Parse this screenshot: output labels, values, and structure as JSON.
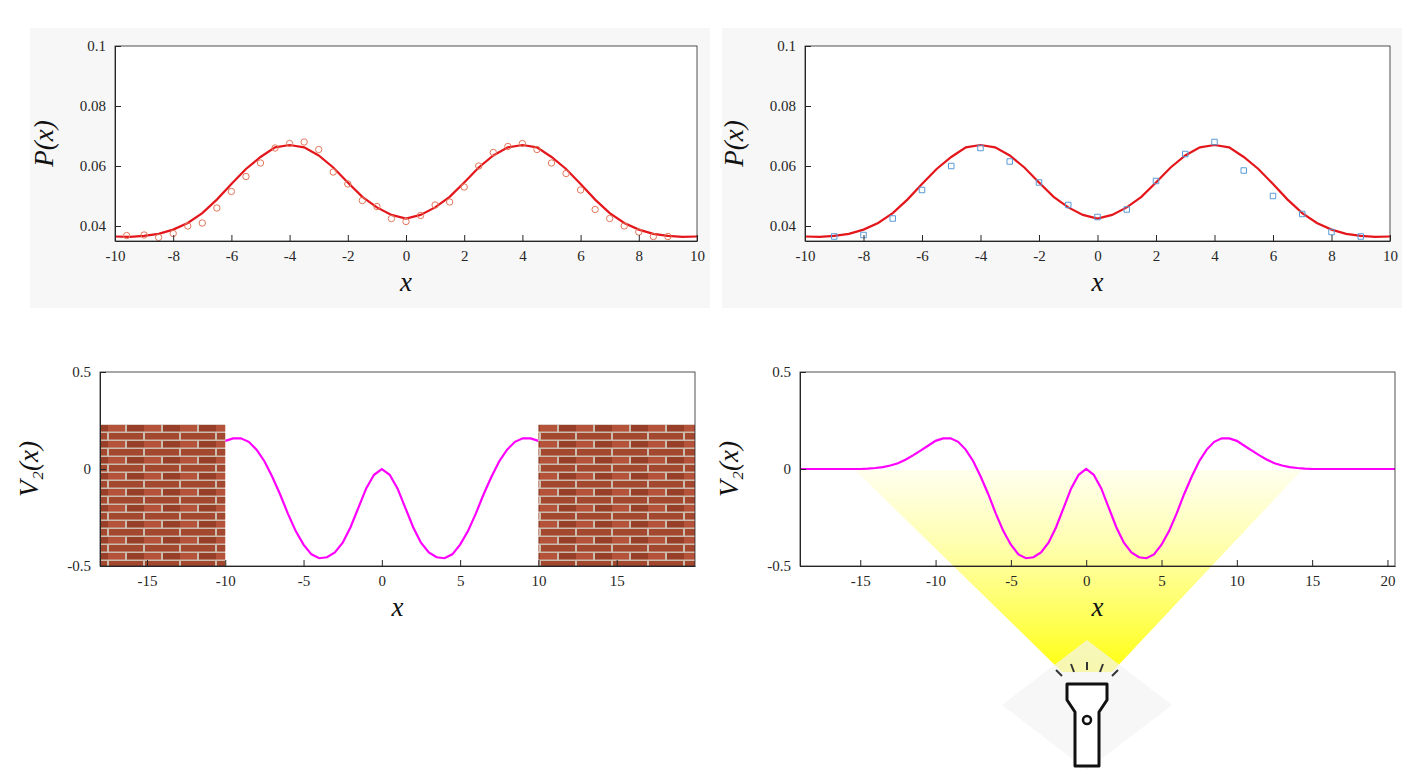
{
  "chart_data": [
    {
      "type": "line",
      "xlabel": "x",
      "ylabel": "P(x)",
      "xlim": [
        -10,
        10
      ],
      "ylim": [
        0.035,
        0.1
      ],
      "xticks": [
        -10,
        -8,
        -6,
        -4,
        -2,
        0,
        2,
        4,
        6,
        8,
        10
      ],
      "yticks": [
        0.04,
        0.06,
        0.08,
        0.1
      ],
      "series": [
        {
          "type": "line",
          "color": "#e3161c",
          "line_style": "solid",
          "x": [
            -10,
            -9.5,
            -9,
            -8.5,
            -8,
            -7.5,
            -7,
            -6.5,
            -6,
            -5.5,
            -5,
            -4.5,
            -4,
            -3.5,
            -3,
            -2.5,
            -2,
            -1.5,
            -1,
            -0.5,
            0,
            0.5,
            1,
            1.5,
            2,
            2.5,
            3,
            3.5,
            4,
            4.5,
            5,
            5.5,
            6,
            6.5,
            7,
            7.5,
            8,
            8.5,
            9,
            9.5,
            10
          ],
          "values": [
            0.0365,
            0.0364,
            0.0367,
            0.0374,
            0.0388,
            0.041,
            0.0443,
            0.0488,
            0.054,
            0.059,
            0.063,
            0.0662,
            0.067,
            0.0662,
            0.0635,
            0.0595,
            0.0545,
            0.0497,
            0.0462,
            0.0437,
            0.0425,
            0.0437,
            0.0462,
            0.0497,
            0.0545,
            0.0595,
            0.0635,
            0.0662,
            0.067,
            0.0662,
            0.063,
            0.059,
            0.054,
            0.0488,
            0.0443,
            0.041,
            0.0388,
            0.0374,
            0.0367,
            0.0364,
            0.0365
          ]
        },
        {
          "type": "scatter",
          "color": "#e2775a",
          "marker": "circle",
          "x": [
            -9.6,
            -9,
            -8.5,
            -8,
            -7.5,
            -7,
            -6.5,
            -6,
            -5.5,
            -5,
            -4.5,
            -4,
            -3.5,
            -3,
            -2.5,
            -2,
            -1.5,
            -1,
            -0.5,
            0,
            0.5,
            1,
            1.5,
            2,
            2.5,
            3,
            3.5,
            4,
            4.5,
            5,
            5.5,
            6,
            6.5,
            7,
            7.5,
            8,
            8.5,
            9
          ],
          "values": [
            0.0368,
            0.037,
            0.0362,
            0.0375,
            0.04,
            0.041,
            0.046,
            0.0515,
            0.0565,
            0.061,
            0.066,
            0.0675,
            0.068,
            0.0655,
            0.058,
            0.054,
            0.0485,
            0.0465,
            0.0425,
            0.0415,
            0.0435,
            0.047,
            0.048,
            0.053,
            0.06,
            0.0645,
            0.0665,
            0.0675,
            0.0655,
            0.061,
            0.0575,
            0.052,
            0.0455,
            0.0425,
            0.04,
            0.038,
            0.0365,
            0.0365
          ]
        }
      ]
    },
    {
      "type": "line",
      "xlabel": "x",
      "ylabel": "P(x)",
      "xlim": [
        -10,
        10
      ],
      "ylim": [
        0.035,
        0.1
      ],
      "xticks": [
        -10,
        -8,
        -6,
        -4,
        -2,
        0,
        2,
        4,
        6,
        8,
        10
      ],
      "yticks": [
        0.04,
        0.06,
        0.08,
        0.1
      ],
      "series": [
        {
          "type": "line",
          "color": "#e3161c",
          "line_style": "solid",
          "x": [
            -10,
            -9.5,
            -9,
            -8.5,
            -8,
            -7.5,
            -7,
            -6.5,
            -6,
            -5.5,
            -5,
            -4.5,
            -4,
            -3.5,
            -3,
            -2.5,
            -2,
            -1.5,
            -1,
            -0.5,
            0,
            0.5,
            1,
            1.5,
            2,
            2.5,
            3,
            3.5,
            4,
            4.5,
            5,
            5.5,
            6,
            6.5,
            7,
            7.5,
            8,
            8.5,
            9,
            9.5,
            10
          ],
          "values": [
            0.0365,
            0.0364,
            0.0367,
            0.0374,
            0.0388,
            0.041,
            0.0443,
            0.0488,
            0.054,
            0.059,
            0.063,
            0.0662,
            0.067,
            0.0662,
            0.0635,
            0.0595,
            0.0545,
            0.0497,
            0.0462,
            0.0437,
            0.0425,
            0.0437,
            0.0462,
            0.0497,
            0.0545,
            0.0595,
            0.0635,
            0.0662,
            0.067,
            0.0662,
            0.063,
            0.059,
            0.054,
            0.0488,
            0.0443,
            0.041,
            0.0388,
            0.0374,
            0.0367,
            0.0364,
            0.0365
          ]
        },
        {
          "type": "scatter",
          "color": "#5b9bd5",
          "marker": "square",
          "x": [
            -9,
            -8,
            -7,
            -6,
            -5,
            -4,
            -3,
            -2,
            -1,
            0,
            1,
            2,
            3,
            4,
            5,
            6,
            7,
            8,
            9
          ],
          "values": [
            0.0365,
            0.037,
            0.0425,
            0.052,
            0.06,
            0.066,
            0.0615,
            0.0545,
            0.047,
            0.043,
            0.0455,
            0.055,
            0.064,
            0.068,
            0.0585,
            0.05,
            0.044,
            0.038,
            0.0365
          ]
        }
      ]
    },
    {
      "type": "line",
      "xlabel": "x",
      "ylabel": "V₂(x)",
      "xlim": [
        -18,
        20
      ],
      "ylim": [
        -0.5,
        0.5
      ],
      "xticks": [
        -15,
        -10,
        -5,
        0,
        5,
        10,
        15
      ],
      "yticks": [
        -0.5,
        0,
        0.5
      ],
      "series": [
        {
          "type": "line",
          "color": "#ff00ff",
          "line_style": "solid",
          "x": [
            -10,
            -9.5,
            -9,
            -8.5,
            -8,
            -7.5,
            -7,
            -6.5,
            -6,
            -5.5,
            -5,
            -4.5,
            -4,
            -3.5,
            -3,
            -2.5,
            -2,
            -1.5,
            -1,
            -0.5,
            0,
            0.5,
            1,
            1.5,
            2,
            2.5,
            3,
            3.5,
            4,
            4.5,
            5,
            5.5,
            6,
            6.5,
            7,
            7.5,
            8,
            8.5,
            9,
            9.5,
            10
          ],
          "values": [
            0.145,
            0.158,
            0.158,
            0.14,
            0.1,
            0.04,
            -0.04,
            -0.13,
            -0.23,
            -0.32,
            -0.39,
            -0.44,
            -0.46,
            -0.455,
            -0.43,
            -0.38,
            -0.3,
            -0.2,
            -0.1,
            -0.03,
            0,
            -0.03,
            -0.1,
            -0.2,
            -0.3,
            -0.38,
            -0.43,
            -0.455,
            -0.46,
            -0.44,
            -0.39,
            -0.32,
            -0.23,
            -0.13,
            -0.04,
            0.04,
            0.1,
            0.14,
            0.158,
            0.158,
            0.145
          ]
        }
      ]
    },
    {
      "type": "line",
      "xlabel": "x",
      "ylabel": "V₂(x)",
      "xlim": [
        -19,
        20.5
      ],
      "ylim": [
        -0.5,
        0.5
      ],
      "xticks": [
        -15,
        -10,
        -5,
        0,
        5,
        10,
        15,
        20
      ],
      "yticks": [
        -0.5,
        0,
        0.5
      ],
      "series": [
        {
          "type": "line",
          "color": "#ff00ff",
          "line_style": "solid",
          "x": [
            -19,
            -18,
            -17,
            -16,
            -15,
            -14.5,
            -14,
            -13.5,
            -13,
            -12.5,
            -12,
            -11.5,
            -11,
            -10.5,
            -10,
            -9.5,
            -9,
            -8.5,
            -8,
            -7.5,
            -7,
            -6.5,
            -6,
            -5.5,
            -5,
            -4.5,
            -4,
            -3.5,
            -3,
            -2.5,
            -2,
            -1.5,
            -1,
            -0.5,
            0,
            0.5,
            1,
            1.5,
            2,
            2.5,
            3,
            3.5,
            4,
            4.5,
            5,
            5.5,
            6,
            6.5,
            7,
            7.5,
            8,
            8.5,
            9,
            9.5,
            10,
            10.5,
            11,
            11.5,
            12,
            12.5,
            13,
            13.5,
            14,
            14.5,
            15,
            16,
            17,
            18,
            19,
            20,
            20.5
          ],
          "values": [
            0,
            0,
            0,
            0,
            0,
            0.002,
            0.005,
            0.01,
            0.018,
            0.03,
            0.048,
            0.07,
            0.095,
            0.12,
            0.145,
            0.158,
            0.158,
            0.14,
            0.1,
            0.04,
            -0.04,
            -0.13,
            -0.23,
            -0.32,
            -0.39,
            -0.44,
            -0.46,
            -0.455,
            -0.43,
            -0.38,
            -0.3,
            -0.2,
            -0.1,
            -0.03,
            0,
            -0.03,
            -0.1,
            -0.2,
            -0.3,
            -0.38,
            -0.43,
            -0.455,
            -0.46,
            -0.44,
            -0.39,
            -0.32,
            -0.23,
            -0.13,
            -0.04,
            0.04,
            0.1,
            0.14,
            0.158,
            0.158,
            0.145,
            0.12,
            0.095,
            0.07,
            0.048,
            0.03,
            0.018,
            0.01,
            0.005,
            0.002,
            0,
            0,
            0,
            0,
            0,
            0,
            0
          ]
        }
      ]
    }
  ]
}
